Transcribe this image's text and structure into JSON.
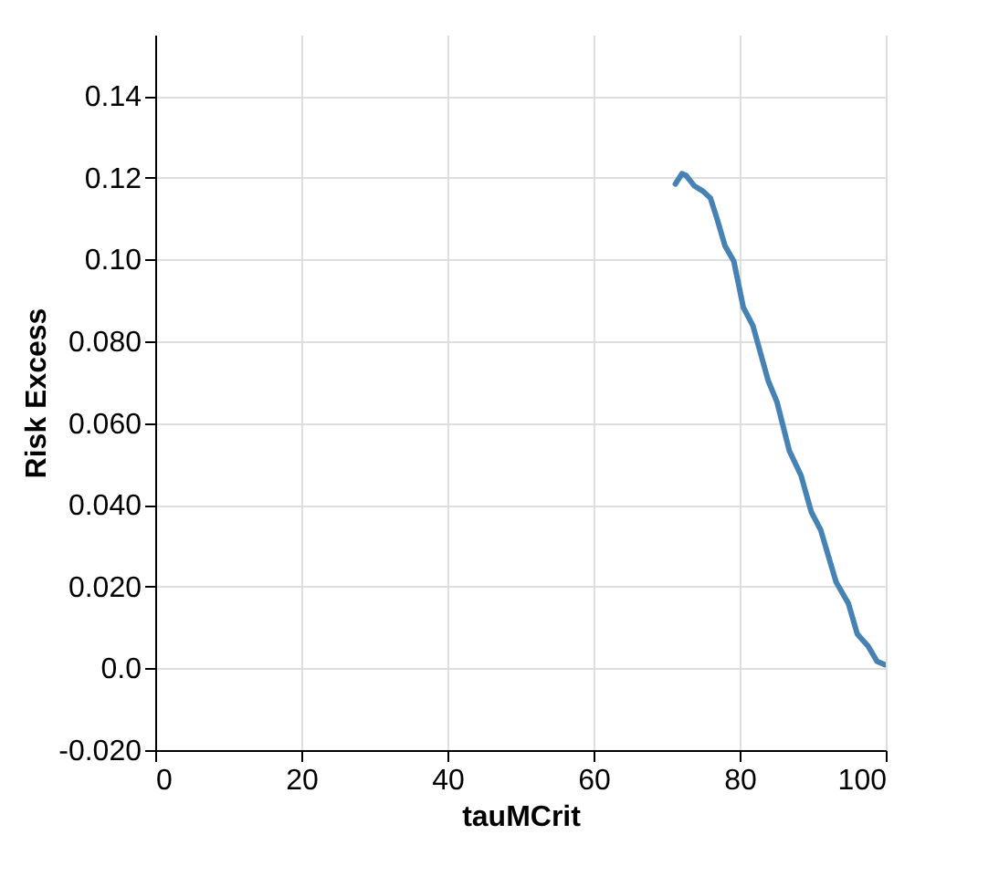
{
  "chart_data": {
    "type": "line",
    "xlabel": "tauMCrit",
    "ylabel": "Risk Excess",
    "xlim": [
      0,
      100
    ],
    "xticks": [
      0,
      20,
      40,
      60,
      80,
      100
    ],
    "ylim": [
      -0.02,
      0.155
    ],
    "yticks": [
      {
        "value": -0.02,
        "label": "-0.020"
      },
      {
        "value": 0,
        "label": "0.0"
      },
      {
        "value": 0.02,
        "label": "0.020"
      },
      {
        "value": 0.04,
        "label": "0.040"
      },
      {
        "value": 0.06,
        "label": "0.060"
      },
      {
        "value": 0.08,
        "label": "0.080"
      },
      {
        "value": 0.1,
        "label": "0.10"
      },
      0.12,
      0.14
    ],
    "grid": true,
    "series": [
      {
        "color": "#4682b4",
        "x": [
          71.2,
          72.1,
          72.7,
          73.8,
          75.0,
          76.0,
          76.9,
          78.0,
          79.2,
          80.5,
          81.8,
          83.9,
          85.1,
          86.8,
          88.4,
          89.8,
          91.1,
          93.2,
          94.9,
          96.1,
          97.6,
          98.8,
          99.9
        ],
        "values": [
          0.1185,
          0.121,
          0.1205,
          0.118,
          0.1167,
          0.115,
          0.11,
          0.1033,
          0.0996,
          0.0883,
          0.0839,
          0.0704,
          0.0652,
          0.0532,
          0.0472,
          0.0383,
          0.0338,
          0.0211,
          0.0158,
          0.0084,
          0.0054,
          0.0017,
          0.0009
        ]
      }
    ]
  }
}
